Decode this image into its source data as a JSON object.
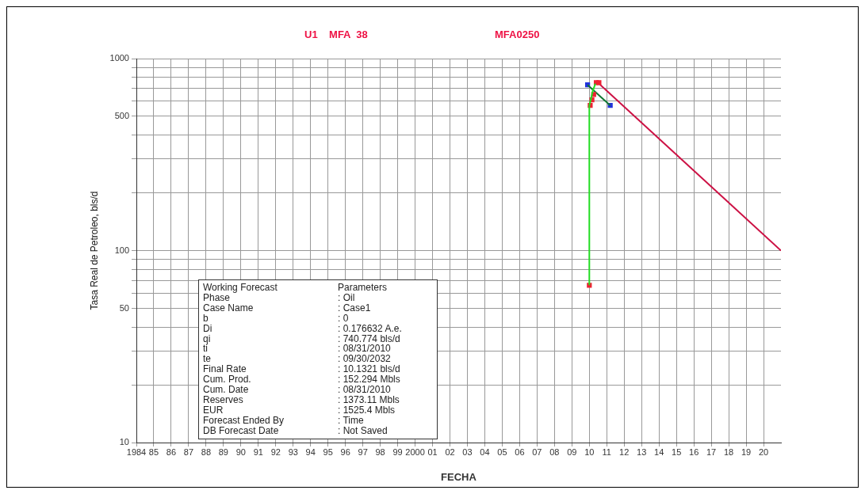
{
  "chart_data": {
    "type": "line",
    "title": "U1    MFA  38",
    "subtitle": "MFA0250",
    "xlabel": "FECHA",
    "ylabel": "Tasa Real de Petroleo, bls/d",
    "log": "y",
    "grid": true,
    "legend": false,
    "xlim": [
      1984,
      2021
    ],
    "xticks": [
      {
        "value": 1984,
        "label": "1984"
      },
      {
        "value": 1985,
        "label": "85"
      },
      {
        "value": 1986,
        "label": "86"
      },
      {
        "value": 1987,
        "label": "87"
      },
      {
        "value": 1988,
        "label": "88"
      },
      {
        "value": 1989,
        "label": "89"
      },
      {
        "value": 1990,
        "label": "90"
      },
      {
        "value": 1991,
        "label": "91"
      },
      {
        "value": 1992,
        "label": "92"
      },
      {
        "value": 1993,
        "label": "93"
      },
      {
        "value": 1994,
        "label": "94"
      },
      {
        "value": 1995,
        "label": "95"
      },
      {
        "value": 1996,
        "label": "96"
      },
      {
        "value": 1997,
        "label": "97"
      },
      {
        "value": 1998,
        "label": "98"
      },
      {
        "value": 1999,
        "label": "99"
      },
      2000,
      {
        "value": 2001,
        "label": "01"
      },
      {
        "value": 2002,
        "label": "02"
      },
      {
        "value": 2003,
        "label": "03"
      },
      {
        "value": 2004,
        "label": "04"
      },
      {
        "value": 2005,
        "label": "05"
      },
      {
        "value": 2006,
        "label": "06"
      },
      {
        "value": 2007,
        "label": "07"
      },
      {
        "value": 2008,
        "label": "08"
      },
      {
        "value": 2009,
        "label": "09"
      },
      {
        "value": 2010,
        "label": "10"
      },
      {
        "value": 2011,
        "label": "11"
      },
      {
        "value": 2012,
        "label": "12"
      },
      {
        "value": 2013,
        "label": "13"
      },
      {
        "value": 2014,
        "label": "14"
      },
      {
        "value": 2015,
        "label": "15"
      },
      {
        "value": 2016,
        "label": "16"
      },
      {
        "value": 2017,
        "label": "17"
      },
      {
        "value": 2018,
        "label": "18"
      },
      {
        "value": 2019,
        "label": "19"
      },
      {
        "value": 2020,
        "label": "20"
      }
    ],
    "ylim": [
      10,
      1000
    ],
    "yticks": [
      10,
      {
        "value": 20,
        "label": null
      },
      {
        "value": 30,
        "label": null
      },
      {
        "value": 40,
        "label": null
      },
      50,
      {
        "value": 60,
        "label": null
      },
      {
        "value": 70,
        "label": null
      },
      {
        "value": 80,
        "label": null
      },
      {
        "value": 90,
        "label": null
      },
      100,
      {
        "value": 200,
        "label": null
      },
      {
        "value": 300,
        "label": null
      },
      {
        "value": 400,
        "label": null
      },
      500,
      {
        "value": 600,
        "label": null
      },
      {
        "value": 700,
        "label": null
      },
      {
        "value": 800,
        "label": null
      },
      {
        "value": 900,
        "label": null
      },
      1000
    ],
    "series": [
      {
        "type": "line",
        "color": "#22dd22",
        "marker": "none",
        "x": [
          2010.0,
          2010.0,
          2010.1,
          2010.2,
          2010.35
        ],
        "values": [
          66,
          570,
          620,
          680,
          740
        ]
      },
      {
        "type": "scatter",
        "color": "#ee2233",
        "marker": "square",
        "x": [
          2010.0,
          2010.05,
          2010.15,
          2010.25,
          2010.4,
          2010.55
        ],
        "values": [
          66,
          570,
          610,
          650,
          750,
          750
        ]
      },
      {
        "type": "line",
        "color": "#cc1144",
        "marker": "none",
        "x": [
          2010.55,
          2021.0
        ],
        "values": [
          741,
          100
        ]
      },
      {
        "type": "line",
        "color": "#117733",
        "marker": "none",
        "x": [
          2009.9,
          2011.2
        ],
        "values": [
          730,
          570
        ]
      },
      {
        "type": "scatter",
        "color": "#2233dd",
        "marker": "square",
        "x": [
          2009.9,
          2011.2
        ],
        "values": [
          730,
          570
        ]
      }
    ],
    "annotations": [
      "Working Forecast\tParameters",
      "Phase\t: Oil",
      "Case Name\t: Case1",
      "b\t: 0",
      "Di\t: 0.176632 A.e.",
      "qi\t: 740.774 bls/d",
      "ti\t: 08/31/2010",
      "te\t: 09/30/2032",
      "Final Rate\t: 10.1321 bls/d",
      "Cum. Prod.\t: 152.294 Mbls",
      "Cum. Date\t: 08/31/2010",
      "Reserves\t: 1373.11 Mbls",
      "EUR\t: 1525.4 Mbls",
      "Forecast Ended By\t: Time",
      "DB Forecast Date\t: Not Saved"
    ]
  }
}
